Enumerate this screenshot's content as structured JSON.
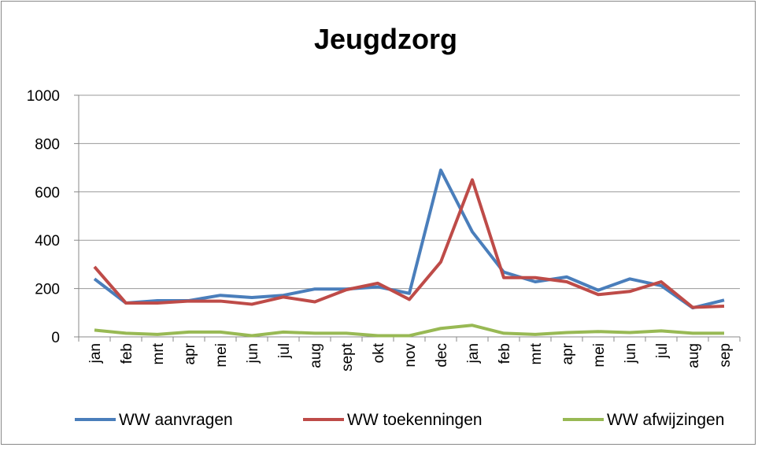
{
  "chart_data": {
    "type": "line",
    "title": "Jeugdzorg",
    "categories": [
      "jan",
      "feb",
      "mrt",
      "apr",
      "mei",
      "jun",
      "jul",
      "aug",
      "sept",
      "okt",
      "nov",
      "dec",
      "jan",
      "feb",
      "mrt",
      "apr",
      "mei",
      "jun",
      "jul",
      "aug",
      "sep"
    ],
    "series": [
      {
        "name": "WW aanvragen",
        "color": "#4a7ebb",
        "values": [
          240,
          140,
          150,
          150,
          172,
          163,
          172,
          198,
          198,
          207,
          180,
          690,
          435,
          268,
          228,
          248,
          193,
          240,
          212,
          120,
          152
        ]
      },
      {
        "name": "WW toekenningen",
        "color": "#be4b48",
        "values": [
          290,
          140,
          140,
          148,
          148,
          135,
          165,
          145,
          195,
          222,
          155,
          310,
          650,
          245,
          245,
          228,
          175,
          188,
          228,
          122,
          127
        ]
      },
      {
        "name": "WW afwijzingen",
        "color": "#98b954",
        "values": [
          28,
          15,
          10,
          20,
          20,
          5,
          20,
          15,
          15,
          5,
          5,
          35,
          48,
          15,
          10,
          18,
          22,
          18,
          25,
          15,
          15
        ]
      }
    ],
    "ylim": [
      0,
      1000
    ],
    "yticks": [
      0,
      200,
      400,
      600,
      800,
      1000
    ],
    "grid": true,
    "legend": "bottom"
  }
}
